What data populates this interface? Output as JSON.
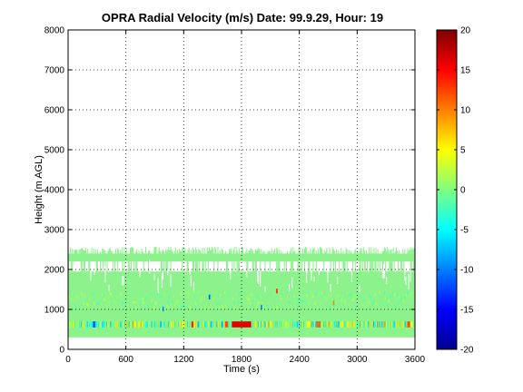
{
  "chart_data": {
    "type": "heatmap",
    "title": "OPRA Radial Velocity (m/s)  Date: 99.9.29, Hour: 19",
    "xlabel": "Time (s)",
    "ylabel": "Height (m AGL)",
    "xlim": [
      0,
      3600
    ],
    "ylim": [
      0,
      8000
    ],
    "xticks": [
      0,
      600,
      1200,
      1800,
      2400,
      3000,
      3600
    ],
    "yticks": [
      0,
      1000,
      2000,
      3000,
      4000,
      5000,
      6000,
      7000,
      8000
    ],
    "grid": true,
    "colorbar": {
      "label": "",
      "range": [
        -20,
        20
      ],
      "ticks": [
        20,
        15,
        10,
        5,
        0,
        -5,
        -10,
        -15,
        -20
      ],
      "colormap": "jet"
    },
    "data_summary": {
      "description_note": "",
      "bands": [
        {
          "height_range": [
            300,
            1950
          ],
          "velocity": 0,
          "note": "near-zero velocity, dense coverage"
        },
        {
          "height_range": [
            2200,
            2400
          ],
          "velocity": 0,
          "note": "continuous layer"
        },
        {
          "height_range": [
            2400,
            2550
          ],
          "velocity": 0,
          "note": "intermittent"
        },
        {
          "height_range": [
            550,
            700
          ],
          "velocity_range": [
            -20,
            20
          ],
          "note": "high-variance layer"
        }
      ]
    }
  },
  "colors": {
    "background": "#ffffff",
    "axes": "#000000",
    "grid": "#000000",
    "main_fill": "#8cf28c"
  }
}
